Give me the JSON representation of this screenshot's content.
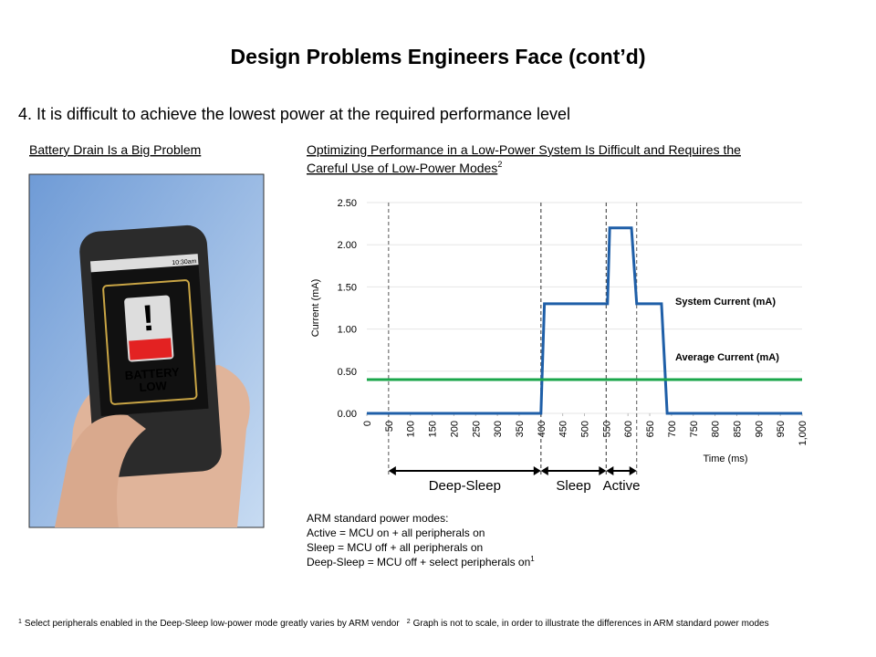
{
  "title": "Design Problems Engineers Face (cont’d)",
  "point": "4. It is difficult to achieve the lowest power at the required performance level",
  "left_heading": "Battery Drain Is a Big Problem",
  "phone": {
    "time": "10:30am",
    "warning": [
      "BATTERY",
      "LOW"
    ]
  },
  "right_heading": {
    "lines": [
      "Optimizing Performance in a Low-Power System Is Difficult and Requires the",
      "Careful Use of Low-Power Modes"
    ],
    "ref": "2"
  },
  "chart_data": {
    "type": "line",
    "y_label": "Current (mA)",
    "x_label": "Time (ms)",
    "xlim": [
      0,
      1000
    ],
    "ylim": [
      0,
      2.5
    ],
    "xticks": [
      0,
      50,
      100,
      150,
      200,
      250,
      300,
      350,
      400,
      450,
      500,
      550,
      600,
      650,
      700,
      750,
      800,
      850,
      900,
      950,
      {
        "value": 1000,
        "label": "1,000"
      }
    ],
    "yticks": [
      {
        "value": 0,
        "label": "0.00"
      },
      {
        "value": 0.5,
        "label": "0.50"
      },
      {
        "value": 1,
        "label": "1.00"
      },
      {
        "value": 1.5,
        "label": "1.50"
      },
      {
        "value": 2,
        "label": "2.00"
      },
      {
        "value": 2.5,
        "label": "2.50"
      }
    ],
    "grid": true,
    "series": [
      {
        "name": "System Current (mA)",
        "color": "#1f5fa8",
        "x": [
          0,
          400,
          408,
          553,
          558,
          608,
          620,
          677,
          690,
          1000
        ],
        "values": [
          0,
          0,
          1.3,
          1.3,
          2.2,
          2.2,
          1.3,
          1.3,
          0,
          0
        ]
      },
      {
        "name": "Average Current (mA)",
        "color": "#1aa64a",
        "x": [
          0,
          1000
        ],
        "values": [
          0.4,
          0.4
        ]
      }
    ],
    "phases": [
      {
        "label": "Deep-Sleep",
        "start": 50,
        "end": 400
      },
      {
        "label": "Sleep",
        "start": 400,
        "end": 550
      },
      {
        "label": "Active",
        "start": 550,
        "end": 620
      }
    ]
  },
  "modes": {
    "heading": "ARM standard power modes:",
    "lines": [
      "Active = MCU on + all peripherals on",
      "Sleep = MCU off + all peripherals on",
      "Deep-Sleep = MCU off + select peripherals on"
    ],
    "ref": "1"
  },
  "footnotes": [
    {
      "ref": "1",
      "text": "Select peripherals enabled in the Deep-Sleep low-power mode greatly varies by ARM vendor"
    },
    {
      "ref": "2",
      "text": "Graph is not to scale, in order to illustrate the differences in ARM standard power modes"
    }
  ]
}
